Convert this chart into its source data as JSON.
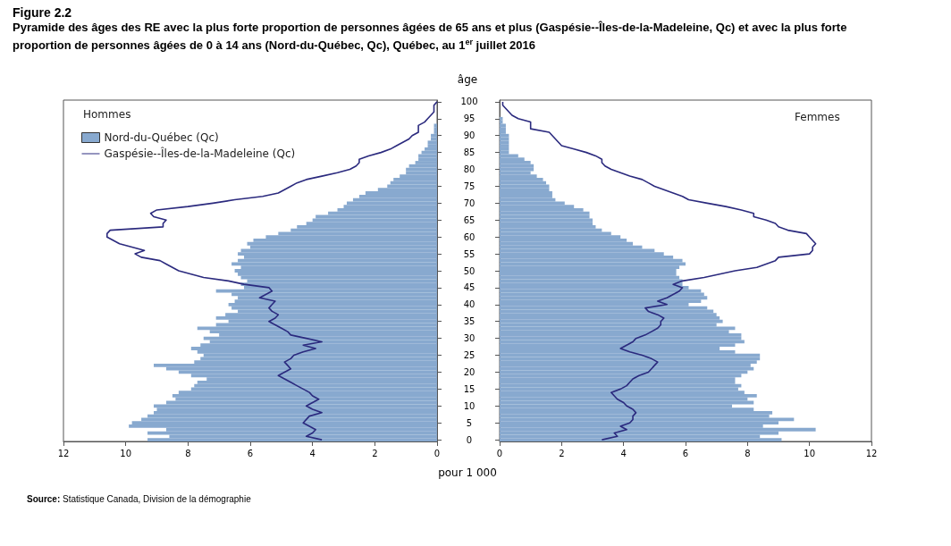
{
  "chart_data": [
    {
      "type": "bar",
      "orientation": "horizontal",
      "title": "Figure 2.2",
      "subtitle": "Pyramide des âges des RE avec la plus forte proportion de personnes âgées de 65 ans et plus (Gaspésie--Îles-de-la-Madeleine, Qc) et avec la plus forte proportion de personnes âgées de 0 à 14 ans (Nord-du-Québec, Qc), Québec, au 1$^{er}$ juillet 2016",
      "xlabel": "pour 1 000",
      "ylabel": "âge",
      "annotations": [
        "Hommes",
        "Source: Statistique Canada, Division de la démographie"
      ],
      "categories": [
        "100",
        null,
        null,
        null,
        null,
        "95",
        null,
        null,
        null,
        null,
        "90",
        null,
        null,
        null,
        null,
        "85",
        null,
        null,
        null,
        null,
        "80",
        null,
        null,
        null,
        null,
        "75",
        null,
        null,
        null,
        null,
        "70",
        null,
        null,
        null,
        null,
        "65",
        null,
        null,
        null,
        null,
        "60",
        null,
        null,
        null,
        null,
        "55",
        null,
        null,
        null,
        null,
        "50",
        null,
        null,
        null,
        null,
        "45",
        null,
        null,
        null,
        null,
        "40",
        null,
        null,
        null,
        null,
        "35",
        null,
        null,
        null,
        null,
        "30",
        null,
        null,
        null,
        null,
        "25",
        null,
        null,
        null,
        null,
        "20",
        null,
        null,
        null,
        null,
        "15",
        null,
        null,
        null,
        null,
        "10",
        null,
        null,
        null,
        null,
        "5",
        null,
        null,
        null,
        null,
        "0"
      ],
      "series": [
        {
          "name": "Nord-du-Québec (Qc)",
          "color": "#88a9cf",
          "values": [
            0,
            0,
            0,
            0,
            0,
            0,
            0,
            0.1,
            0.1,
            0.1,
            0.2,
            0.2,
            0.3,
            0.3,
            0.4,
            0.5,
            0.6,
            0.6,
            0.7,
            0.9,
            1.0,
            1.0,
            1.2,
            1.4,
            1.5,
            1.6,
            1.9,
            2.3,
            2.5,
            2.7,
            2.9,
            3.0,
            3.2,
            3.5,
            3.9,
            4.0,
            4.2,
            4.5,
            4.7,
            5.1,
            5.5,
            5.9,
            6.1,
            6.0,
            6.3,
            6.4,
            6.2,
            6.4,
            6.6,
            6.3,
            6.5,
            6.4,
            6.3,
            6.1,
            6.3,
            6.2,
            7.1,
            6.6,
            6.4,
            6.5,
            6.7,
            6.6,
            6.4,
            6.8,
            7.1,
            6.7,
            7.1,
            7.7,
            7.3,
            7.0,
            7.5,
            7.3,
            7.6,
            7.9,
            7.7,
            7.5,
            7.6,
            7.8,
            9.1,
            8.7,
            8.3,
            7.9,
            7.4,
            7.7,
            7.8,
            7.9,
            8.3,
            8.5,
            8.4,
            8.7,
            9.1,
            9.0,
            9.1,
            9.3,
            9.5,
            9.8,
            9.9,
            8.7,
            9.3,
            8.6,
            9.3
          ]
        },
        {
          "name": "Gaspésie--Îles-de-la-Madeleine (Qc)",
          "type": "line",
          "color": "#2b2a7e",
          "values": [
            0.0,
            0.1,
            0.1,
            0.1,
            0.2,
            0.3,
            0.4,
            0.6,
            0.6,
            0.6,
            0.8,
            0.9,
            1.1,
            1.3,
            1.5,
            1.8,
            2.2,
            2.5,
            2.5,
            2.6,
            2.8,
            3.2,
            3.7,
            4.2,
            4.5,
            4.7,
            4.9,
            5.1,
            5.6,
            6.5,
            7.2,
            8.0,
            9.0,
            9.2,
            9.1,
            8.7,
            8.8,
            8.8,
            10.5,
            10.6,
            10.6,
            10.4,
            10.2,
            9.8,
            9.4,
            9.7,
            9.5,
            8.9,
            8.7,
            8.5,
            8.3,
            7.9,
            7.5,
            6.7,
            6.2,
            5.4,
            5.3,
            5.5,
            5.7,
            5.2,
            5.3,
            5.4,
            5.3,
            5.1,
            5.2,
            5.4,
            5.2,
            5.0,
            4.8,
            4.7,
            4.2,
            3.7,
            4.3,
            3.9,
            4.3,
            4.6,
            4.7,
            4.9,
            4.8,
            4.7,
            4.9,
            5.1,
            4.9,
            4.7,
            4.5,
            4.3,
            4.1,
            4.0,
            3.8,
            4.0,
            4.2,
            4.0,
            3.7,
            4.1,
            4.2,
            4.3,
            4.1,
            3.9,
            4.0,
            4.2,
            3.7
          ]
        }
      ],
      "xlim": [
        12,
        0
      ],
      "xticks": [
        0,
        2,
        4,
        6,
        8,
        10,
        12
      ],
      "legend": "top left",
      "grid": false,
      "marker": "none"
    },
    {
      "type": "bar",
      "orientation": "horizontal",
      "annotations": [
        "Femmes"
      ],
      "categories": [
        "100",
        null,
        null,
        null,
        null,
        "95",
        null,
        null,
        null,
        null,
        "90",
        null,
        null,
        null,
        null,
        "85",
        null,
        null,
        null,
        null,
        "80",
        null,
        null,
        null,
        null,
        "75",
        null,
        null,
        null,
        null,
        "70",
        null,
        null,
        null,
        null,
        "65",
        null,
        null,
        null,
        null,
        "60",
        null,
        null,
        null,
        null,
        "55",
        null,
        null,
        null,
        null,
        "50",
        null,
        null,
        null,
        null,
        "45",
        null,
        null,
        null,
        null,
        "40",
        null,
        null,
        null,
        null,
        "35",
        null,
        null,
        null,
        null,
        "30",
        null,
        null,
        null,
        null,
        "25",
        null,
        null,
        null,
        null,
        "20",
        null,
        null,
        null,
        null,
        "15",
        null,
        null,
        null,
        null,
        "10",
        null,
        null,
        null,
        null,
        "5",
        null,
        null,
        null,
        null,
        "0"
      ],
      "series": [
        {
          "color": "#88a9cf",
          "values": [
            0,
            0,
            0,
            0,
            0,
            0.1,
            0.1,
            0.2,
            0.2,
            0.2,
            0.3,
            0.3,
            0.3,
            0.3,
            0.3,
            0.3,
            0.6,
            0.8,
            1.0,
            1.1,
            1.1,
            1.0,
            1.2,
            1.4,
            1.5,
            1.6,
            1.6,
            1.7,
            1.7,
            1.8,
            2.1,
            2.4,
            2.7,
            2.9,
            2.9,
            3.0,
            3.0,
            3.1,
            3.3,
            3.6,
            3.9,
            4.1,
            4.3,
            4.6,
            5.0,
            5.3,
            5.6,
            5.9,
            6.0,
            5.8,
            5.7,
            5.7,
            5.8,
            5.9,
            5.9,
            6.1,
            6.5,
            6.6,
            6.7,
            6.5,
            6.1,
            6.7,
            6.9,
            7.0,
            7.1,
            7.2,
            7.0,
            7.6,
            7.4,
            7.8,
            7.8,
            7.9,
            7.6,
            7.1,
            7.6,
            8.4,
            8.4,
            8.3,
            8.1,
            8.2,
            8.0,
            7.8,
            7.6,
            7.6,
            7.8,
            7.7,
            7.9,
            8.3,
            8.0,
            8.2,
            7.5,
            8.2,
            8.8,
            8.7,
            9.5,
            9.0,
            8.5,
            10.2,
            9.0,
            8.4,
            9.1
          ]
        },
        {
          "type": "line",
          "color": "#2b2a7e",
          "values": [
            0.1,
            0.1,
            0.2,
            0.3,
            0.4,
            0.6,
            1.0,
            1.0,
            1.0,
            1.6,
            1.7,
            1.8,
            1.9,
            2.0,
            2.4,
            2.8,
            3.1,
            3.3,
            3.3,
            3.4,
            3.6,
            3.9,
            4.2,
            4.6,
            4.8,
            5.0,
            5.3,
            5.6,
            5.9,
            6.1,
            6.7,
            7.3,
            7.8,
            8.2,
            8.2,
            8.6,
            8.9,
            9.0,
            9.3,
            9.9,
            10.0,
            10.1,
            10.2,
            10.1,
            10.1,
            10.0,
            9.0,
            8.9,
            8.6,
            8.3,
            7.6,
            7.1,
            6.6,
            5.9,
            5.6,
            5.9,
            5.8,
            5.6,
            5.4,
            5.1,
            5.4,
            4.7,
            4.8,
            5.1,
            5.3,
            5.2,
            5.2,
            5.1,
            4.9,
            4.7,
            4.4,
            4.3,
            4.1,
            3.9,
            4.2,
            4.6,
            4.9,
            5.1,
            5.0,
            4.9,
            4.8,
            4.5,
            4.3,
            4.2,
            4.1,
            3.9,
            3.6,
            3.7,
            3.8,
            4.0,
            4.1,
            4.3,
            4.4,
            4.3,
            4.3,
            4.2,
            3.9,
            4.1,
            3.7,
            3.8,
            3.3
          ]
        }
      ],
      "xlim": [
        0,
        12
      ],
      "xticks": [
        0,
        2,
        4,
        6,
        8,
        10,
        12
      ],
      "tick_labels": "x",
      "grid": false,
      "marker": "none"
    }
  ]
}
